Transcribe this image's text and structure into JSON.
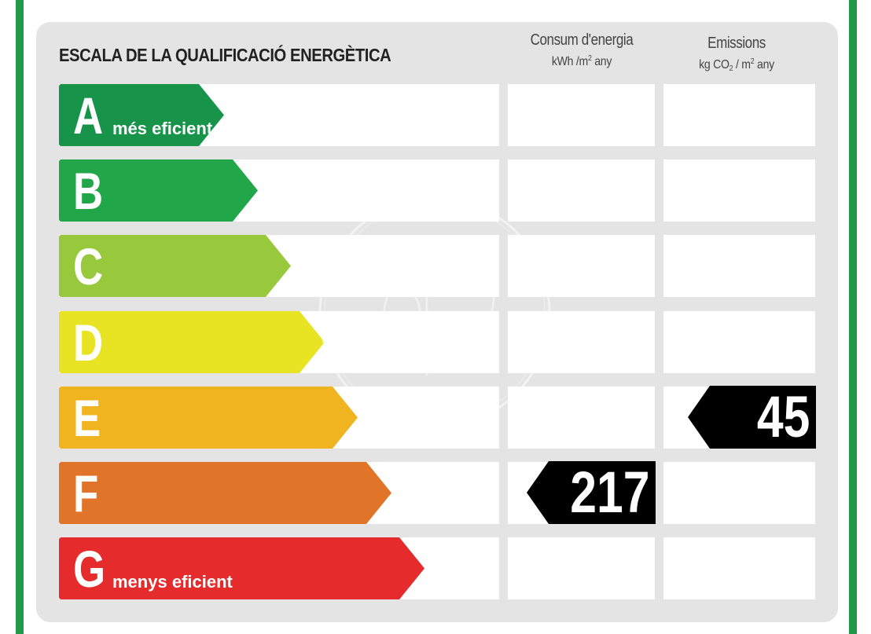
{
  "header": {
    "title": "ESCALA DE LA QUALIFICACIÓ ENERGÈTICA",
    "energy": {
      "line1": "Consum d'energia",
      "unit_a": "kWh /m",
      "unit_sup": "2",
      "unit_b": " any"
    },
    "emissions": {
      "line1": "Emissions",
      "unit_a": "kg CO",
      "unit_sub": "2",
      "unit_b": " / m",
      "unit_sup": "2",
      "unit_c": " any"
    }
  },
  "rows": [
    {
      "letter": "A",
      "sub": "més eficient",
      "color": "#17944a"
    },
    {
      "letter": "B",
      "sub": "",
      "color": "#21a64a"
    },
    {
      "letter": "C",
      "sub": "",
      "color": "#98c93c"
    },
    {
      "letter": "D",
      "sub": "",
      "color": "#e8e424"
    },
    {
      "letter": "E",
      "sub": "",
      "color": "#f0b421"
    },
    {
      "letter": "F",
      "sub": "",
      "color": "#e0752a"
    },
    {
      "letter": "G",
      "sub": "menys eficient",
      "color": "#e52b2b"
    }
  ],
  "ratings": {
    "energy": {
      "value": "217",
      "row": "F"
    },
    "emissions": {
      "value": "45",
      "row": "E"
    }
  },
  "colors": {
    "frame_green": "#1e9a48",
    "panel_grey": "#e4e4e4",
    "badge_black": "#000000"
  }
}
